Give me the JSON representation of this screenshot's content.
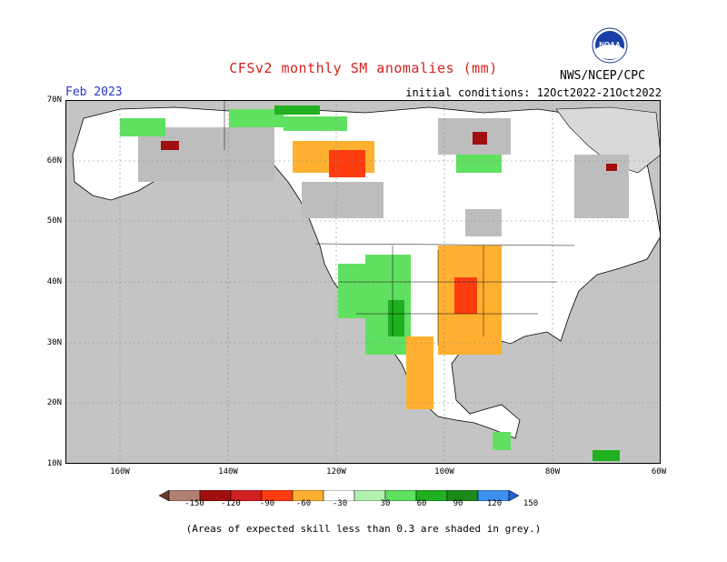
{
  "title": "CFSv2 monthly SM anomalies (mm)",
  "month": "Feb 2023",
  "initial_conditions": "initial conditions: 12Oct2022-21Oct2022",
  "agency": "NWS/NCEP/CPC",
  "logo_text": "NOAA",
  "lat_labels": [
    "70N",
    "60N",
    "50N",
    "40N",
    "30N",
    "20N",
    "10N"
  ],
  "lon_labels": [
    "160W",
    "140W",
    "120W",
    "100W",
    "80W",
    "60W"
  ],
  "colorbar": {
    "ticks": [
      "-150",
      "-120",
      "-90",
      "-60",
      "-30",
      "30",
      "60",
      "90",
      "120",
      "150"
    ],
    "colors": [
      "#6b3a2a",
      "#b08070",
      "#a01010",
      "#d02020",
      "#ff3c10",
      "#ffb030",
      "#ffffff",
      "#b0f0b0",
      "#60e060",
      "#20b020",
      "#1a8a1a",
      "#3c90f0",
      "#2060d0"
    ]
  },
  "note": "(Areas of expected skill less than 0.3 are shaded in grey.)"
}
